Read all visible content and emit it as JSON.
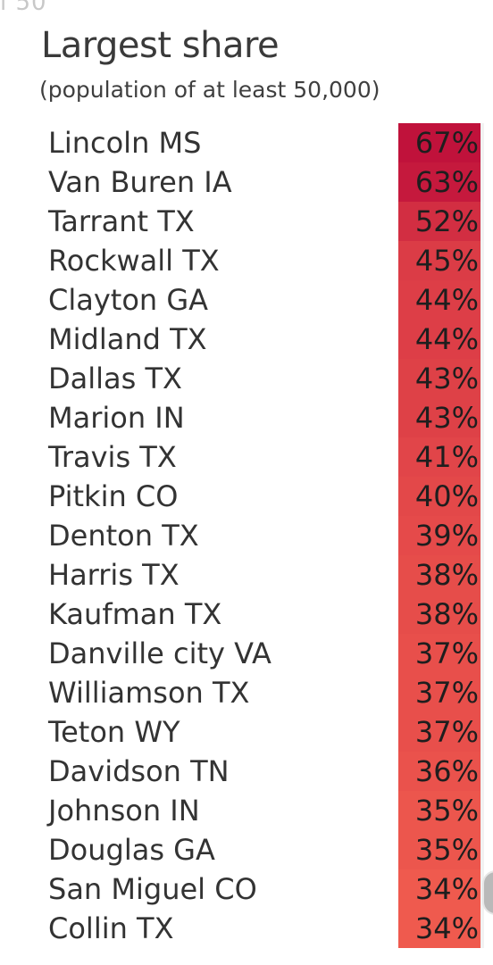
{
  "header": {
    "cut_text": "i 50",
    "title": "Largest share",
    "subtitle": "(population of at least 50,000)"
  },
  "chart_data": {
    "type": "table",
    "title": "Largest share",
    "subtitle": "(population of at least 50,000)",
    "value_suffix": "%",
    "color_scale": {
      "min_value": 34,
      "max_value": 67,
      "low_color": "#ef5a4e",
      "high_color": "#c0123b"
    },
    "rows": [
      {
        "county": "Lincoln MS",
        "value": 67,
        "label": "67%"
      },
      {
        "county": "Van Buren IA",
        "value": 63,
        "label": "63%"
      },
      {
        "county": "Tarrant TX",
        "value": 52,
        "label": "52%"
      },
      {
        "county": "Rockwall TX",
        "value": 45,
        "label": "45%"
      },
      {
        "county": "Clayton GA",
        "value": 44,
        "label": "44%"
      },
      {
        "county": "Midland TX",
        "value": 44,
        "label": "44%"
      },
      {
        "county": "Dallas TX",
        "value": 43,
        "label": "43%"
      },
      {
        "county": "Marion IN",
        "value": 43,
        "label": "43%"
      },
      {
        "county": "Travis TX",
        "value": 41,
        "label": "41%"
      },
      {
        "county": "Pitkin CO",
        "value": 40,
        "label": "40%"
      },
      {
        "county": "Denton TX",
        "value": 39,
        "label": "39%"
      },
      {
        "county": "Harris TX",
        "value": 38,
        "label": "38%"
      },
      {
        "county": "Kaufman TX",
        "value": 38,
        "label": "38%"
      },
      {
        "county": "Danville city VA",
        "value": 37,
        "label": "37%"
      },
      {
        "county": "Williamson TX",
        "value": 37,
        "label": "37%"
      },
      {
        "county": "Teton WY",
        "value": 37,
        "label": "37%"
      },
      {
        "county": "Davidson TN",
        "value": 36,
        "label": "36%"
      },
      {
        "county": "Johnson IN",
        "value": 35,
        "label": "35%"
      },
      {
        "county": "Douglas GA",
        "value": 35,
        "label": "35%"
      },
      {
        "county": "San Miguel CO",
        "value": 34,
        "label": "34%"
      },
      {
        "county": "Collin TX",
        "value": 34,
        "label": "34%"
      }
    ]
  }
}
